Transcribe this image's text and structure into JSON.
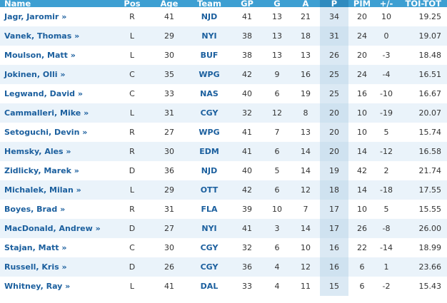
{
  "columns": {
    "name": "Name",
    "pos": "Pos",
    "age": "Age",
    "team": "Team",
    "gp": "GP",
    "g": "G",
    "a": "A",
    "p": "P",
    "pim": "PIM",
    "pm": "+/-",
    "toi": "TOI-TOT"
  },
  "sorted_column": "p",
  "colors": {
    "header_bg": "#3d9fd2",
    "header_sorted_bg": "#2f8bbf",
    "link": "#1b5f9e",
    "row_alt": "#eaf3fa"
  },
  "rows": [
    {
      "name": "Jagr, Jaromir »",
      "pos": "R",
      "age": "41",
      "team": "NJD",
      "gp": "41",
      "g": "13",
      "a": "21",
      "p": "34",
      "pim": "20",
      "pm": "10",
      "toi": "19.25"
    },
    {
      "name": "Vanek, Thomas »",
      "pos": "L",
      "age": "29",
      "team": "NYI",
      "gp": "38",
      "g": "13",
      "a": "18",
      "p": "31",
      "pim": "24",
      "pm": "0",
      "toi": "19.07"
    },
    {
      "name": "Moulson, Matt »",
      "pos": "L",
      "age": "30",
      "team": "BUF",
      "gp": "38",
      "g": "13",
      "a": "13",
      "p": "26",
      "pim": "20",
      "pm": "-3",
      "toi": "18.48"
    },
    {
      "name": "Jokinen, Olli »",
      "pos": "C",
      "age": "35",
      "team": "WPG",
      "gp": "42",
      "g": "9",
      "a": "16",
      "p": "25",
      "pim": "24",
      "pm": "-4",
      "toi": "16.51"
    },
    {
      "name": "Legwand, David »",
      "pos": "C",
      "age": "33",
      "team": "NAS",
      "gp": "40",
      "g": "6",
      "a": "19",
      "p": "25",
      "pim": "16",
      "pm": "-10",
      "toi": "16.67"
    },
    {
      "name": "Cammalleri, Mike »",
      "pos": "L",
      "age": "31",
      "team": "CGY",
      "gp": "32",
      "g": "12",
      "a": "8",
      "p": "20",
      "pim": "10",
      "pm": "-19",
      "toi": "20.07"
    },
    {
      "name": "Setoguchi, Devin »",
      "pos": "R",
      "age": "27",
      "team": "WPG",
      "gp": "41",
      "g": "7",
      "a": "13",
      "p": "20",
      "pim": "10",
      "pm": "5",
      "toi": "15.74"
    },
    {
      "name": "Hemsky, Ales »",
      "pos": "R",
      "age": "30",
      "team": "EDM",
      "gp": "41",
      "g": "6",
      "a": "14",
      "p": "20",
      "pim": "14",
      "pm": "-12",
      "toi": "16.58"
    },
    {
      "name": "Zidlicky, Marek »",
      "pos": "D",
      "age": "36",
      "team": "NJD",
      "gp": "40",
      "g": "5",
      "a": "14",
      "p": "19",
      "pim": "42",
      "pm": "2",
      "toi": "21.74"
    },
    {
      "name": "Michalek, Milan »",
      "pos": "L",
      "age": "29",
      "team": "OTT",
      "gp": "42",
      "g": "6",
      "a": "12",
      "p": "18",
      "pim": "14",
      "pm": "-18",
      "toi": "17.55"
    },
    {
      "name": "Boyes, Brad »",
      "pos": "R",
      "age": "31",
      "team": "FLA",
      "gp": "39",
      "g": "10",
      "a": "7",
      "p": "17",
      "pim": "10",
      "pm": "5",
      "toi": "15.55"
    },
    {
      "name": "MacDonald, Andrew »",
      "pos": "D",
      "age": "27",
      "team": "NYI",
      "gp": "41",
      "g": "3",
      "a": "14",
      "p": "17",
      "pim": "26",
      "pm": "-8",
      "toi": "26.00"
    },
    {
      "name": "Stajan, Matt »",
      "pos": "C",
      "age": "30",
      "team": "CGY",
      "gp": "32",
      "g": "6",
      "a": "10",
      "p": "16",
      "pim": "22",
      "pm": "-14",
      "toi": "18.99"
    },
    {
      "name": "Russell, Kris »",
      "pos": "D",
      "age": "26",
      "team": "CGY",
      "gp": "36",
      "g": "4",
      "a": "12",
      "p": "16",
      "pim": "6",
      "pm": "1",
      "toi": "23.66"
    },
    {
      "name": "Whitney, Ray »",
      "pos": "L",
      "age": "41",
      "team": "DAL",
      "gp": "33",
      "g": "4",
      "a": "11",
      "p": "15",
      "pim": "6",
      "pm": "-2",
      "toi": "15.43"
    }
  ]
}
